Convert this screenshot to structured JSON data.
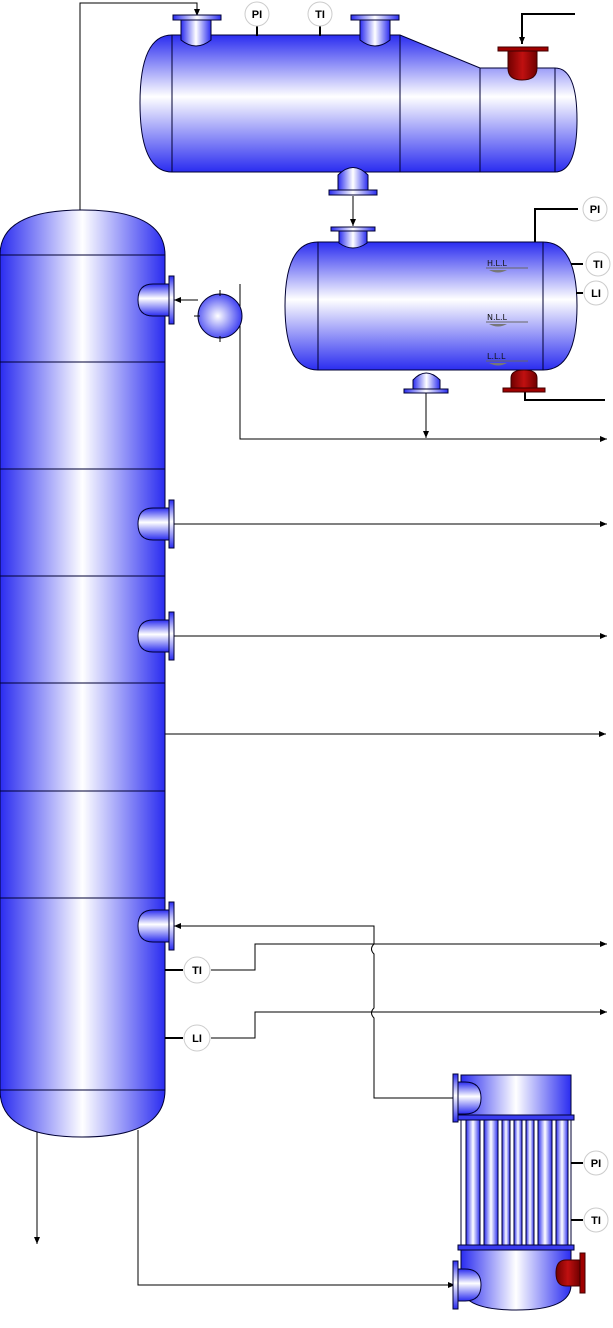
{
  "instruments": {
    "top_drum_pi": "PI",
    "top_drum_ti": "TI",
    "reflux_drum_pi": "PI",
    "reflux_drum_ti": "TI",
    "reflux_drum_li": "LI",
    "column_ti": "TI",
    "column_li": "LI",
    "reboiler_pi": "PI",
    "reboiler_ti": "TI"
  },
  "levels": {
    "high": "H.L.L",
    "normal": "N.L.L",
    "low": "L.L.L"
  },
  "colors": {
    "vessel_dark": "#2a2cf0",
    "vessel_light": "#ffffff",
    "vessel_outline": "#000033",
    "valve_red": "#a00000",
    "line": "#000000"
  }
}
